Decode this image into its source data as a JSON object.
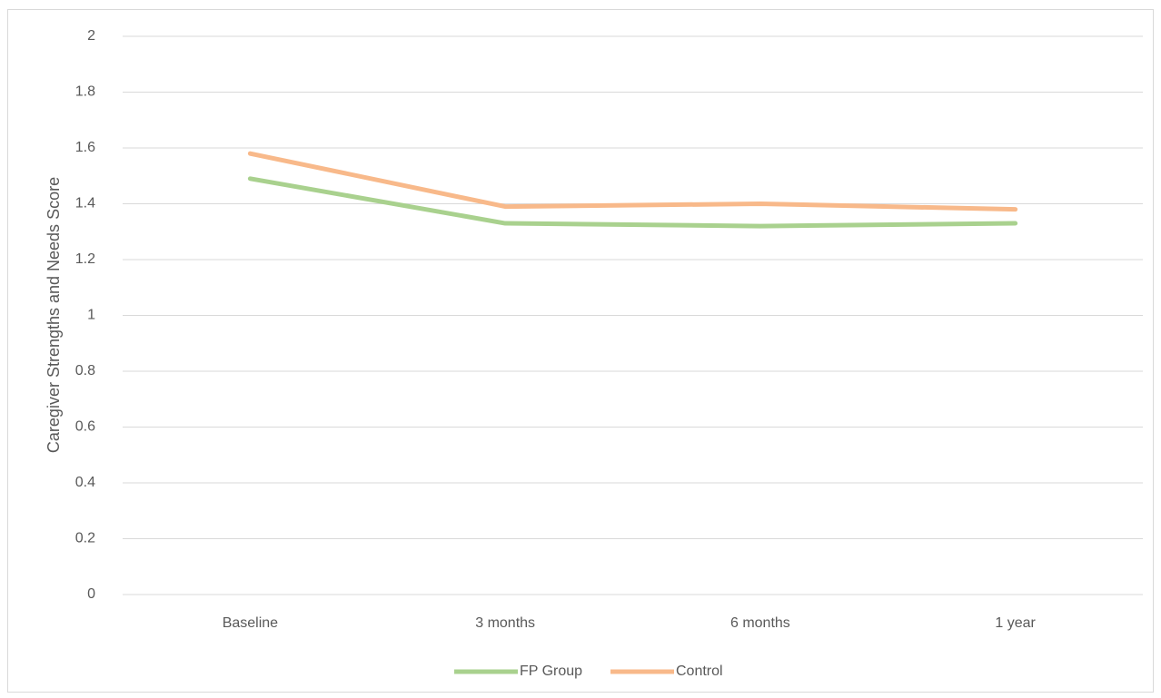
{
  "chart_data": {
    "type": "line",
    "y_label": "Caregiver Strengths and Needs Score",
    "categories": [
      "Baseline",
      "3 months",
      "6 months",
      "1 year"
    ],
    "series": [
      {
        "name": "FP Group",
        "color": "#a9d18e",
        "values": [
          1.49,
          1.33,
          1.32,
          1.33
        ]
      },
      {
        "name": "Control",
        "color": "#f8b98a",
        "values": [
          1.58,
          1.39,
          1.4,
          1.38
        ]
      }
    ],
    "ylim": [
      0,
      2
    ],
    "yticks": [
      0,
      0.2,
      0.4,
      0.6,
      0.8,
      1,
      1.2,
      1.4,
      1.6,
      1.8,
      2
    ],
    "grid": true,
    "legend": "bottom"
  }
}
